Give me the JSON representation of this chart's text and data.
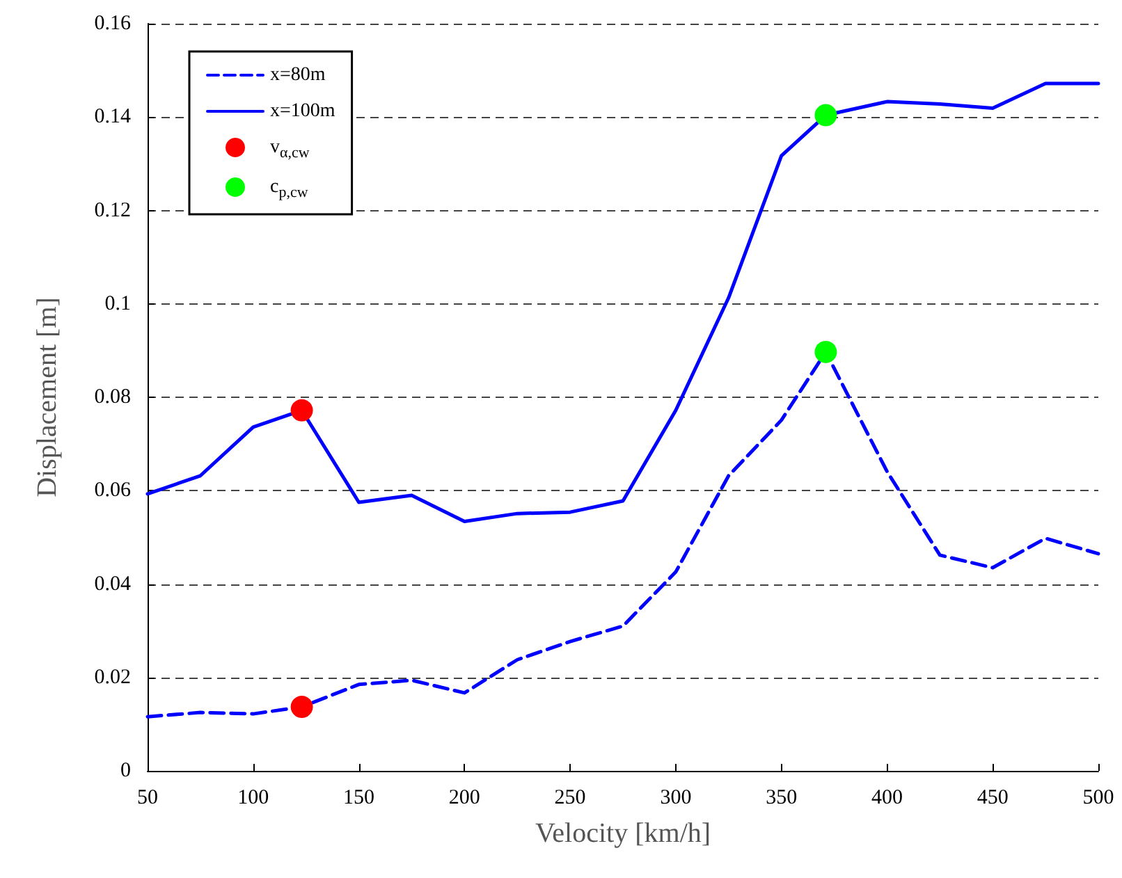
{
  "chart_data": {
    "type": "line",
    "xlabel": "Velocity [km/h]",
    "ylabel": "Displacement [m]",
    "x": [
      50,
      75,
      100,
      123,
      150,
      175,
      200,
      225,
      250,
      275,
      300,
      325,
      350,
      371,
      400,
      425,
      450,
      475,
      500
    ],
    "xlim": [
      50,
      500
    ],
    "xticks": [
      50,
      100,
      150,
      200,
      250,
      300,
      350,
      400,
      450,
      500
    ],
    "ylim": [
      0,
      0.16
    ],
    "yticks": [
      0,
      0.02,
      0.04,
      0.06,
      0.08,
      0.1,
      0.12,
      0.14,
      0.16
    ],
    "grid": "y",
    "legend": "top left",
    "series": [
      {
        "name": "x=80m",
        "type": "line",
        "color": "#0000ff",
        "line_style": "dashed",
        "marker": "none",
        "values": [
          0.0116,
          0.0125,
          0.0122,
          0.0137,
          0.0185,
          0.0194,
          0.0167,
          0.0238,
          0.0277,
          0.031,
          0.0426,
          0.0632,
          0.0751,
          0.0897,
          0.0641,
          0.0462,
          0.0435,
          0.0498,
          0.0465
        ]
      },
      {
        "name": "x=100m",
        "type": "line",
        "color": "#0000ff",
        "line_style": "solid",
        "marker": "none",
        "values": [
          0.0593,
          0.0632,
          0.0736,
          0.0772,
          0.0575,
          0.059,
          0.0534,
          0.0551,
          0.0554,
          0.0578,
          0.0772,
          0.1013,
          0.1317,
          0.1404,
          0.1433,
          0.1428,
          0.1419,
          0.1472,
          0.1472
        ]
      },
      {
        "name": "v$_{α,cw}$",
        "type": "scatter",
        "color": "#ff0000",
        "marker": "circle",
        "values": [
          null,
          null,
          null,
          0.0772,
          null,
          null,
          null,
          null,
          null,
          null,
          null,
          null,
          null,
          null,
          null,
          null,
          null,
          null,
          null
        ]
      },
      {
        "type": "scatter",
        "color": "#ff0000",
        "marker": "circle",
        "values": [
          null,
          null,
          null,
          0.0137,
          null,
          null,
          null,
          null,
          null,
          null,
          null,
          null,
          null,
          null,
          null,
          null,
          null,
          null,
          null
        ]
      },
      {
        "name": "c$_{p,cw}$",
        "type": "scatter",
        "color": "#00ff00",
        "marker": "circle",
        "values": [
          null,
          null,
          null,
          null,
          null,
          null,
          null,
          null,
          null,
          null,
          null,
          null,
          null,
          0.1404,
          null,
          null,
          null,
          null,
          null
        ]
      },
      {
        "type": "scatter",
        "color": "#00ff00",
        "marker": "circle",
        "values": [
          null,
          null,
          null,
          null,
          null,
          null,
          null,
          null,
          null,
          null,
          null,
          null,
          null,
          0.0897,
          null,
          null,
          null,
          null,
          null
        ]
      }
    ]
  }
}
